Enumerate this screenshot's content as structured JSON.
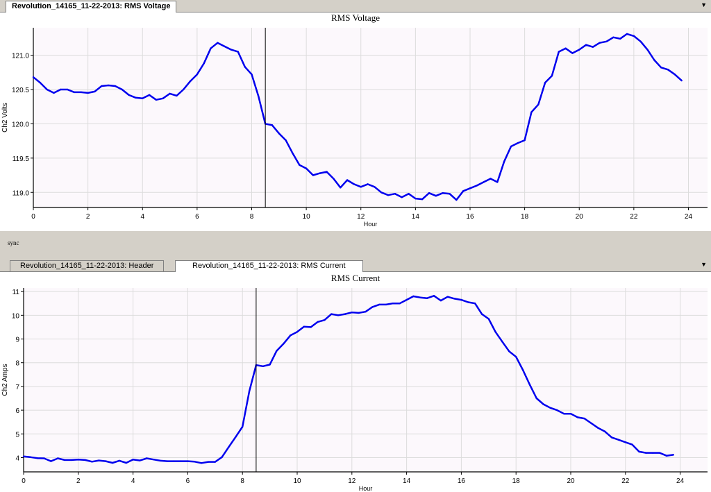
{
  "top_tabs": [
    {
      "label": "Revolution_14165_11-22-2013: RMS Voltage",
      "active": true
    }
  ],
  "bottom_tabs": [
    {
      "label": "Revolution_14165_11-22-2013: Header",
      "active": false
    },
    {
      "label": "Revolution_14165_11-22-2013: RMS Current",
      "active": true
    }
  ],
  "dropdown_icon": "chevron-down-icon",
  "sync_label": "sync",
  "colors": {
    "line": "#0000ee",
    "plot_bg": "#fcf8fc",
    "grid": "#dcdcdc",
    "cursor": "#000000"
  },
  "chart_data": [
    {
      "type": "line",
      "title": "RMS Voltage",
      "xlabel": "Hour",
      "ylabel": "Ch2 Volts",
      "xlim": [
        0,
        24.7
      ],
      "ylim": [
        118.78,
        121.4
      ],
      "xticks": [
        0,
        2,
        4,
        6,
        8,
        10,
        12,
        14,
        16,
        18,
        20,
        22,
        24
      ],
      "yticks": [
        119.0,
        119.5,
        120.0,
        120.5,
        121.0
      ],
      "ytick_labels": [
        "119.0",
        "119.5",
        "120.0",
        "120.5",
        "121.0"
      ],
      "cursor_x": 8.5,
      "grid": true,
      "series": [
        {
          "x": [
            0,
            0.25,
            0.5,
            0.75,
            1,
            1.25,
            1.5,
            1.75,
            2,
            2.25,
            2.5,
            2.75,
            3,
            3.25,
            3.5,
            3.75,
            4,
            4.25,
            4.5,
            4.75,
            5,
            5.25,
            5.5,
            5.75,
            6,
            6.25,
            6.5,
            6.75,
            7,
            7.25,
            7.5,
            7.75,
            8,
            8.25,
            8.5,
            8.75,
            9,
            9.25,
            9.5,
            9.75,
            10,
            10.25,
            10.5,
            10.75,
            11,
            11.25,
            11.5,
            11.75,
            12,
            12.25,
            12.5,
            12.75,
            13,
            13.25,
            13.5,
            13.75,
            14,
            14.25,
            14.5,
            14.75,
            15,
            15.25,
            15.5,
            15.75,
            16,
            16.25,
            16.5,
            16.75,
            17,
            17.25,
            17.5,
            17.75,
            18,
            18.25,
            18.5,
            18.75,
            19,
            19.25,
            19.5,
            19.75,
            20,
            20.25,
            20.5,
            20.75,
            21,
            21.25,
            21.5,
            21.75,
            22,
            22.25,
            22.5,
            22.75,
            23,
            23.25,
            23.5,
            23.75
          ],
          "y": [
            120.68,
            120.6,
            120.5,
            120.45,
            120.5,
            120.5,
            120.46,
            120.46,
            120.45,
            120.47,
            120.55,
            120.56,
            120.55,
            120.5,
            120.42,
            120.38,
            120.37,
            120.42,
            120.35,
            120.37,
            120.44,
            120.41,
            120.5,
            120.62,
            120.72,
            120.88,
            121.1,
            121.18,
            121.13,
            121.08,
            121.05,
            120.83,
            120.72,
            120.4,
            120.0,
            119.98,
            119.86,
            119.76,
            119.57,
            119.4,
            119.35,
            119.25,
            119.28,
            119.3,
            119.2,
            119.07,
            119.18,
            119.12,
            119.08,
            119.12,
            119.08,
            119.0,
            118.96,
            118.98,
            118.93,
            118.98,
            118.91,
            118.9,
            118.99,
            118.95,
            118.99,
            118.98,
            118.89,
            119.02,
            119.06,
            119.1,
            119.15,
            119.2,
            119.15,
            119.45,
            119.67,
            119.72,
            119.76,
            120.17,
            120.28,
            120.6,
            120.7,
            121.05,
            121.1,
            121.03,
            121.08,
            121.15,
            121.12,
            121.18,
            121.2,
            121.26,
            121.24,
            121.31,
            121.28,
            121.2,
            121.08,
            120.93,
            120.82,
            120.79,
            120.72,
            120.63
          ]
        }
      ]
    },
    {
      "type": "line",
      "title": "RMS Current",
      "xlabel": "Hour",
      "ylabel": "Ch2 Amps",
      "xlim": [
        0,
        25
      ],
      "ylim": [
        3.4,
        11.15
      ],
      "xticks": [
        0,
        2,
        4,
        6,
        8,
        10,
        12,
        14,
        16,
        18,
        20,
        22,
        24
      ],
      "yticks": [
        4,
        5,
        6,
        7,
        8,
        9,
        10,
        11
      ],
      "ytick_labels": [
        "4",
        "5",
        "6",
        "7",
        "8",
        "9",
        "10",
        "11"
      ],
      "cursor_x": 8.5,
      "grid": true,
      "series": [
        {
          "x": [
            0,
            0.25,
            0.5,
            0.75,
            1,
            1.25,
            1.5,
            1.75,
            2,
            2.25,
            2.5,
            2.75,
            3,
            3.25,
            3.5,
            3.75,
            4,
            4.25,
            4.5,
            4.75,
            5,
            5.25,
            5.5,
            5.75,
            6,
            6.25,
            6.5,
            6.75,
            7,
            7.25,
            7.5,
            7.75,
            8,
            8.25,
            8.5,
            8.75,
            9,
            9.25,
            9.5,
            9.75,
            10,
            10.25,
            10.5,
            10.75,
            11,
            11.25,
            11.5,
            11.75,
            12,
            12.25,
            12.5,
            12.75,
            13,
            13.25,
            13.5,
            13.75,
            14,
            14.25,
            14.5,
            14.75,
            15,
            15.25,
            15.5,
            15.75,
            16,
            16.25,
            16.5,
            16.75,
            17,
            17.25,
            17.5,
            17.75,
            18,
            18.25,
            18.5,
            18.75,
            19,
            19.25,
            19.5,
            19.75,
            20,
            20.25,
            20.5,
            20.75,
            21,
            21.25,
            21.5,
            21.75,
            22,
            22.25,
            22.5,
            22.75,
            23,
            23.25,
            23.5,
            23.75
          ],
          "y": [
            4.05,
            4.02,
            3.98,
            3.97,
            3.85,
            3.97,
            3.9,
            3.9,
            3.92,
            3.9,
            3.83,
            3.88,
            3.85,
            3.78,
            3.87,
            3.78,
            3.92,
            3.88,
            3.97,
            3.92,
            3.87,
            3.85,
            3.85,
            3.85,
            3.85,
            3.83,
            3.77,
            3.82,
            3.82,
            4.02,
            4.45,
            4.87,
            5.3,
            6.8,
            7.9,
            7.85,
            7.92,
            8.5,
            8.8,
            9.15,
            9.3,
            9.52,
            9.5,
            9.72,
            9.8,
            10.05,
            10.0,
            10.05,
            10.12,
            10.1,
            10.15,
            10.35,
            10.45,
            10.45,
            10.5,
            10.5,
            10.65,
            10.8,
            10.75,
            10.72,
            10.82,
            10.62,
            10.78,
            10.7,
            10.65,
            10.55,
            10.5,
            10.05,
            9.85,
            9.3,
            8.88,
            8.48,
            8.25,
            7.7,
            7.08,
            6.5,
            6.25,
            6.1,
            6.0,
            5.85,
            5.85,
            5.7,
            5.65,
            5.45,
            5.25,
            5.1,
            4.85,
            4.75,
            4.65,
            4.55,
            4.25,
            4.2,
            4.2,
            4.2,
            4.08,
            4.12
          ]
        }
      ]
    }
  ]
}
